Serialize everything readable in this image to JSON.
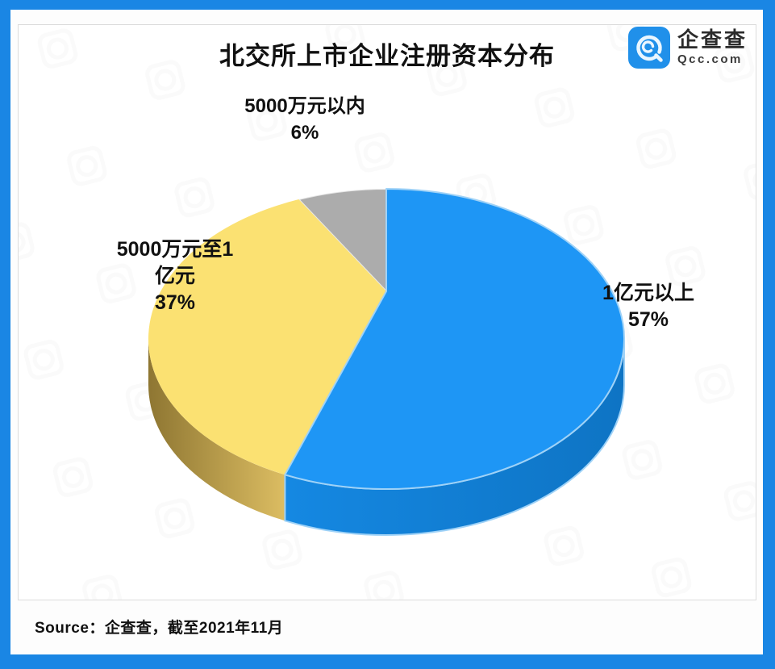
{
  "page": {
    "frame_color": "#1a86e4",
    "background": "#ffffff"
  },
  "header": {
    "title": "北交所上市企业注册资本分布"
  },
  "brand": {
    "name": "企查查",
    "site": "Qcc.com",
    "icon": "qcc-logo",
    "icon_color": "#2090ea"
  },
  "chart_data": {
    "type": "pie",
    "style": "3d",
    "title": "北交所上市企业注册资本分布",
    "direction": "clockwise",
    "start_angle": "12-oclock",
    "unit": "%",
    "slices": [
      {
        "label": "1亿元以上",
        "value": 57,
        "color": "#1e96f5",
        "side_color_start": "#1588e2",
        "side_color_end": "#0e74c4",
        "edge": "#9fd2f7"
      },
      {
        "label": "5000万元至1亿元",
        "value": 37,
        "color": "#fbe172",
        "side_color_start": "#8e7632",
        "side_color_end": "#dcbd62"
      },
      {
        "label": "5000万元以内",
        "value": 6,
        "color": "#acacac",
        "edge": "rgba(255,255,255,0.7)"
      }
    ],
    "legend_position": "none",
    "labels_format": "name + percent"
  },
  "slice_labels": {
    "right": {
      "lines": [
        "1亿元以上",
        "57%"
      ]
    },
    "left": {
      "lines": [
        "5000万元至1",
        "亿元",
        "37%"
      ]
    },
    "top": {
      "lines": [
        "5000万元以内",
        "6%"
      ]
    }
  },
  "footer": {
    "source_text": "Source：企查查，截至2021年11月"
  }
}
